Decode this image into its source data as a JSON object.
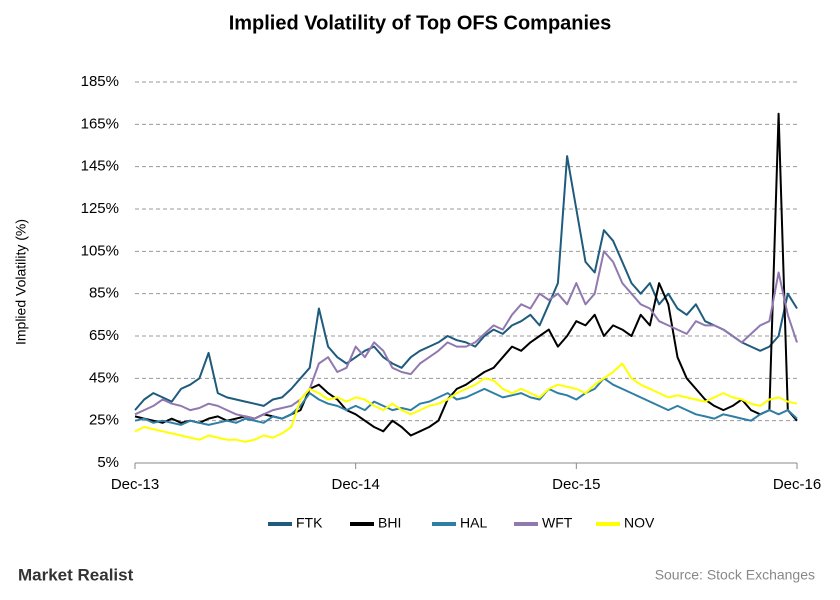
{
  "chart_data": {
    "type": "line",
    "title": "Implied Volatility of Top OFS Companies",
    "y_label": "Implied Volatility (%)",
    "categories": [
      "Dec-13",
      null,
      null,
      null,
      null,
      null,
      null,
      null,
      null,
      null,
      null,
      null,
      null,
      null,
      null,
      null,
      null,
      null,
      null,
      null,
      null,
      null,
      null,
      null,
      "Dec-14",
      null,
      null,
      null,
      null,
      null,
      null,
      null,
      null,
      null,
      null,
      null,
      null,
      null,
      null,
      null,
      null,
      null,
      null,
      null,
      null,
      null,
      null,
      null,
      "Dec-15",
      null,
      null,
      null,
      null,
      null,
      null,
      null,
      null,
      null,
      null,
      null,
      null,
      null,
      null,
      null,
      null,
      null,
      null,
      null,
      null,
      null,
      null,
      null,
      "Dec-16"
    ],
    "series": [
      {
        "name": "FTK",
        "color": "#1f5b7c",
        "values": [
          30,
          35,
          38,
          36,
          34,
          40,
          42,
          45,
          57,
          38,
          36,
          35,
          34,
          33,
          32,
          35,
          36,
          40,
          45,
          50,
          78,
          60,
          55,
          52,
          55,
          58,
          60,
          55,
          52,
          50,
          55,
          58,
          60,
          62,
          65,
          63,
          62,
          60,
          65,
          68,
          66,
          70,
          72,
          75,
          70,
          80,
          90,
          150,
          125,
          100,
          95,
          115,
          110,
          100,
          90,
          85,
          90,
          80,
          85,
          78,
          75,
          80,
          72,
          70,
          68,
          65,
          62,
          60,
          58,
          60,
          65,
          85,
          78
        ]
      },
      {
        "name": "BHI",
        "color": "#000000",
        "values": [
          27,
          26,
          25,
          24,
          26,
          24,
          25,
          24,
          26,
          27,
          25,
          26,
          27,
          26,
          28,
          27,
          26,
          28,
          30,
          40,
          42,
          38,
          35,
          30,
          28,
          25,
          22,
          20,
          25,
          22,
          18,
          20,
          22,
          25,
          35,
          40,
          42,
          45,
          48,
          50,
          55,
          60,
          58,
          62,
          65,
          68,
          60,
          65,
          72,
          70,
          75,
          65,
          70,
          68,
          65,
          75,
          70,
          90,
          80,
          55,
          45,
          40,
          35,
          32,
          30,
          32,
          35,
          30,
          28,
          30,
          170,
          30,
          25
        ]
      },
      {
        "name": "HAL",
        "color": "#2f7ea6",
        "values": [
          25,
          26,
          24,
          25,
          24,
          23,
          25,
          24,
          23,
          24,
          25,
          24,
          26,
          25,
          24,
          27,
          26,
          28,
          32,
          38,
          35,
          33,
          32,
          30,
          32,
          30,
          34,
          32,
          30,
          31,
          30,
          33,
          34,
          36,
          38,
          35,
          36,
          38,
          40,
          38,
          36,
          37,
          38,
          36,
          35,
          40,
          38,
          37,
          35,
          38,
          40,
          45,
          42,
          40,
          38,
          36,
          34,
          32,
          30,
          32,
          30,
          28,
          27,
          26,
          28,
          27,
          26,
          25,
          28,
          30,
          28,
          30,
          26
        ]
      },
      {
        "name": "WFT",
        "color": "#9079b0",
        "values": [
          28,
          30,
          32,
          35,
          33,
          32,
          30,
          31,
          33,
          32,
          30,
          28,
          27,
          26,
          28,
          30,
          31,
          32,
          35,
          40,
          52,
          55,
          48,
          50,
          60,
          55,
          62,
          58,
          50,
          48,
          47,
          52,
          55,
          58,
          62,
          60,
          60,
          62,
          66,
          70,
          68,
          75,
          80,
          78,
          85,
          82,
          85,
          80,
          90,
          80,
          85,
          105,
          100,
          90,
          85,
          80,
          78,
          72,
          70,
          68,
          66,
          72,
          70,
          70,
          68,
          65,
          62,
          66,
          70,
          72,
          95,
          75,
          62
        ]
      },
      {
        "name": "NOV",
        "color": "#ffff00",
        "values": [
          20,
          22,
          21,
          20,
          19,
          18,
          17,
          16,
          18,
          17,
          16,
          16,
          15,
          16,
          18,
          17,
          19,
          22,
          35,
          40,
          38,
          35,
          36,
          34,
          36,
          35,
          32,
          30,
          33,
          30,
          28,
          30,
          32,
          33,
          35,
          38,
          40,
          42,
          45,
          44,
          40,
          38,
          40,
          38,
          36,
          40,
          42,
          41,
          40,
          38,
          42,
          45,
          48,
          52,
          45,
          42,
          40,
          38,
          36,
          37,
          36,
          35,
          34,
          36,
          38,
          36,
          35,
          33,
          32,
          35,
          36,
          34,
          33
        ]
      }
    ],
    "ylim": [
      5,
      185
    ],
    "yticks": [
      {
        "value": 5,
        "label": "5%"
      },
      {
        "value": 25,
        "label": "25%"
      },
      {
        "value": 45,
        "label": "45%"
      },
      {
        "value": 65,
        "label": "65%"
      },
      {
        "value": 85,
        "label": "85%"
      },
      {
        "value": 105,
        "label": "105%"
      },
      {
        "value": 125,
        "label": "125%"
      },
      {
        "value": 145,
        "label": "145%"
      },
      {
        "value": 165,
        "label": "165%"
      },
      {
        "value": 185,
        "label": "185%"
      }
    ],
    "grid": true,
    "legend": "bottom"
  },
  "brand": "Market Realist",
  "source": "Source:  Stock Exchanges"
}
